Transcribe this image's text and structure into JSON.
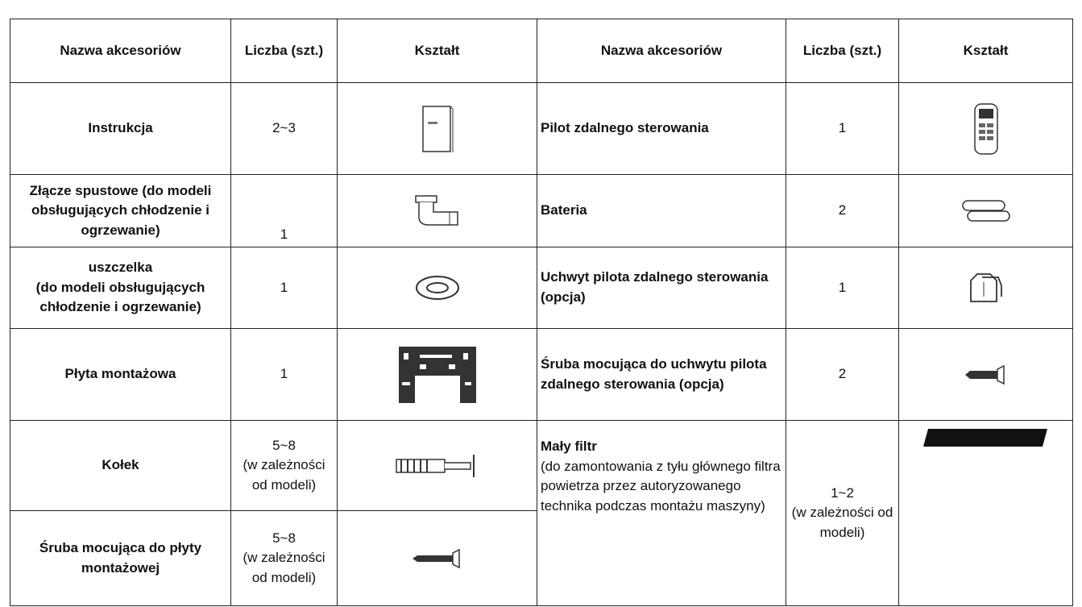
{
  "table": {
    "header": [
      "Nazwa akcesoriów",
      "Liczba (szt.)",
      "Kształt",
      "Nazwa akcesoriów",
      "Liczba (szt.)",
      "Kształt"
    ],
    "rows": [
      {
        "left": {
          "name": "Instrukcja",
          "quantity": "2~3"
        },
        "right": {
          "name": "Pilot zdalnego sterowania",
          "quantity": "1"
        }
      },
      {
        "left": {
          "name": "Złącze spustowe (do modeli obsługujących chłodzenie i ogrzewanie)",
          "quantity": "1"
        },
        "right": {
          "name": "Bateria",
          "quantity": "2"
        }
      },
      {
        "left": {
          "name": "uszczelka\n(do modeli obsługujących chłodzenie i ogrzewanie)",
          "quantity": "1"
        },
        "right": {
          "name": "Uchwyt pilota zdalnego sterowania (opcja)",
          "quantity": "1"
        }
      },
      {
        "left": {
          "name": "Płyta montażowa",
          "quantity": "1"
        },
        "right": {
          "name": "Śruba mocująca do uchwytu pilota zdalnego sterowania (opcja)",
          "quantity": "2"
        }
      },
      {
        "left": {
          "name": "Kołek",
          "quantity": "5~8\n(w zależności od modeli)"
        },
        "right": {
          "name": "Mały filtr",
          "note": "(do zamontowania z tyłu głównego filtra powietrza przez autoryzowanego technika podczas montażu maszyny)",
          "quantity": "1~2\n(w zależności od modeli)"
        }
      },
      {
        "left": {
          "name": "Śruba mocująca do płyty montażowej",
          "quantity": "5~8\n(w zależności od modeli)"
        }
      }
    ]
  }
}
